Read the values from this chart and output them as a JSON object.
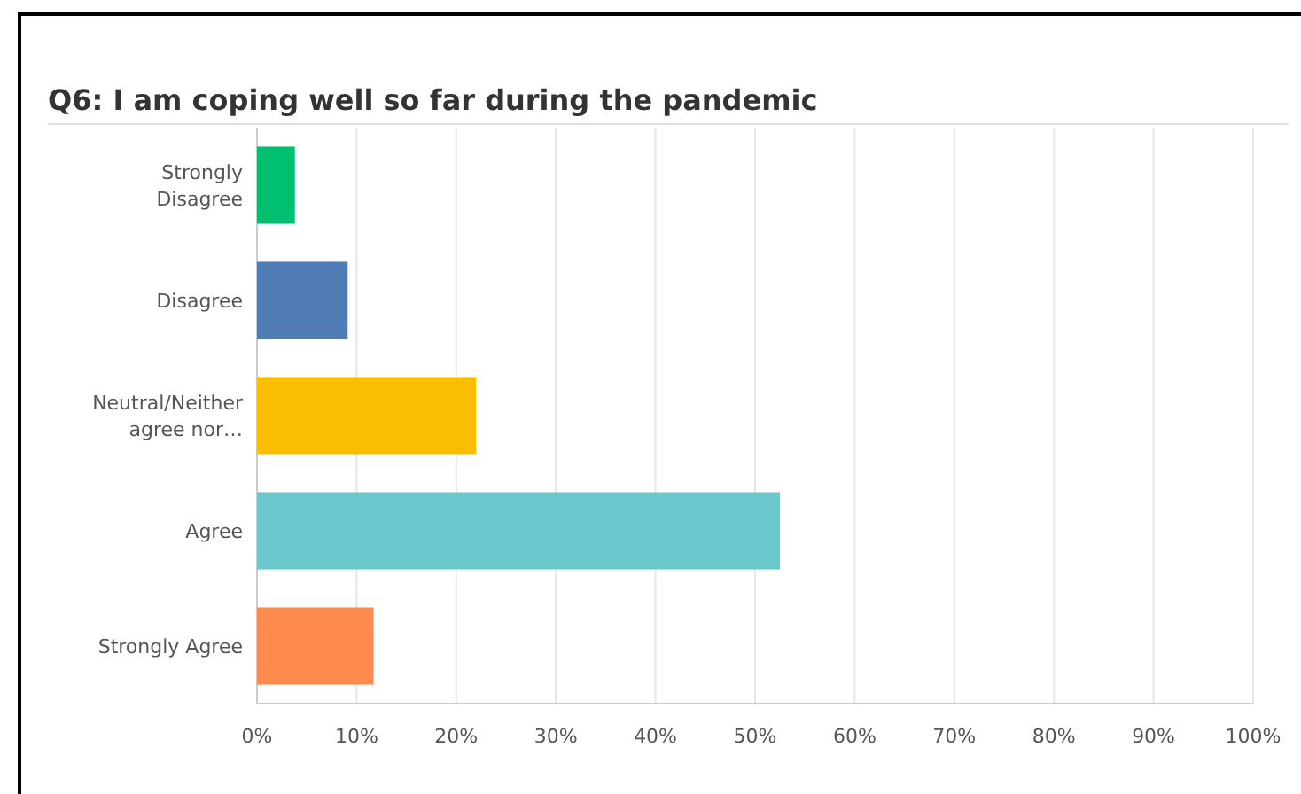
{
  "chart_data": {
    "type": "bar",
    "orientation": "horizontal",
    "title": "Q6: I am coping well so far during the pandemic",
    "categories": [
      "Strongly Disagree",
      "Disagree",
      "Neutral/Neither agree nor…",
      "Agree",
      "Strongly Agree"
    ],
    "values": [
      3.8,
      9.1,
      22.0,
      52.5,
      11.7
    ],
    "colors": [
      "#00bf6f",
      "#507cb6",
      "#f9be00",
      "#6bc8cd",
      "#ff8b4f"
    ],
    "xlim": [
      0,
      100
    ],
    "xticks": [
      {
        "value": 0,
        "label": "0%"
      },
      {
        "value": 10,
        "label": "10%"
      },
      {
        "value": 20,
        "label": "20%"
      },
      {
        "value": 30,
        "label": "30%"
      },
      {
        "value": 40,
        "label": "40%"
      },
      {
        "value": 50,
        "label": "50%"
      },
      {
        "value": 60,
        "label": "60%"
      },
      {
        "value": 70,
        "label": "70%"
      },
      {
        "value": 80,
        "label": "80%"
      },
      {
        "value": 90,
        "label": "90%"
      },
      {
        "value": 100,
        "label": "100%"
      }
    ],
    "grid": "x"
  }
}
